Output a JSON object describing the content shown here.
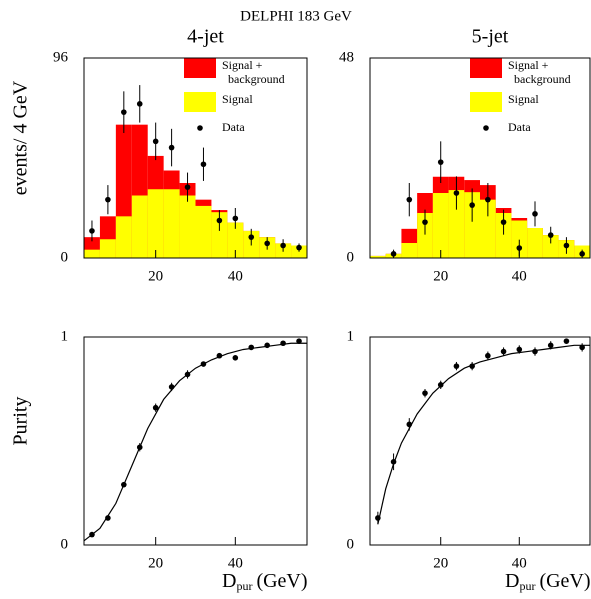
{
  "title": "DELPHI 183 GeV",
  "chart_data": [
    {
      "type": "histogram",
      "title": "4-jet",
      "ylabel": "events/ 4 GeV",
      "bins": [
        2,
        6,
        10,
        14,
        18,
        22,
        26,
        30,
        34,
        38,
        42,
        46,
        50,
        54,
        58
      ],
      "series": [
        {
          "name": "Signal + background",
          "color": "#ff0000",
          "values": [
            10,
            20,
            64,
            64,
            49,
            42,
            36,
            28,
            23,
            17,
            13,
            10,
            7,
            6
          ]
        },
        {
          "name": "Signal",
          "color": "#ffff00",
          "values": [
            4,
            9,
            20,
            30,
            33,
            33,
            30,
            25,
            22,
            17,
            13,
            10,
            7,
            6
          ]
        }
      ],
      "points": {
        "name": "Data",
        "color": "#000000",
        "x": [
          4,
          8,
          12,
          16,
          20,
          24,
          28,
          32,
          36,
          40,
          44,
          48,
          52,
          56
        ],
        "values": [
          13,
          28,
          70,
          74,
          56,
          53,
          34,
          45,
          18,
          19,
          10,
          7,
          6,
          5
        ],
        "errors": [
          5,
          7,
          10,
          9,
          9,
          9,
          7,
          8,
          5,
          5,
          4,
          3,
          3,
          2
        ]
      },
      "xlim": [
        2,
        58
      ],
      "ylim": [
        0,
        96
      ],
      "xticks": [
        20,
        40
      ],
      "yticks": [
        0,
        96
      ]
    },
    {
      "type": "histogram",
      "title": "5-jet",
      "bins": [
        2,
        6,
        10,
        14,
        18,
        22,
        26,
        30,
        34,
        38,
        42,
        46,
        50,
        54,
        58
      ],
      "series": [
        {
          "name": "Signal + background",
          "color": "#ff0000",
          "values": [
            0.5,
            1,
            7,
            15.6,
            19.5,
            19.5,
            18.7,
            17.5,
            12,
            9.6,
            7.2,
            5.5,
            4.3,
            3
          ]
        },
        {
          "name": "Signal",
          "color": "#ffff00",
          "values": [
            0.5,
            1,
            3.6,
            10.8,
            15.6,
            16.3,
            15.8,
            14,
            10.8,
            9,
            7.2,
            5.5,
            4.3,
            3
          ]
        }
      ],
      "points": {
        "name": "Data",
        "color": "#000000",
        "x": [
          8,
          12,
          16,
          20,
          24,
          28,
          32,
          36,
          40,
          44,
          48,
          52,
          56
        ],
        "values": [
          1,
          14,
          8.6,
          23,
          15.6,
          12.7,
          14,
          8.6,
          2.4,
          10.6,
          5.5,
          3,
          1
        ],
        "errors": [
          1,
          4,
          3,
          5,
          4,
          4,
          4,
          3,
          2,
          3,
          2,
          2,
          1
        ]
      },
      "xlim": [
        2,
        58
      ],
      "ylim": [
        0,
        48
      ],
      "xticks": [
        20,
        40
      ],
      "yticks": [
        0,
        48
      ]
    },
    {
      "type": "scatter",
      "ylabel": "Purity",
      "xlabel": "D",
      "xlabel_sub": "pur",
      "xlabel_unit": "(GeV)",
      "points": {
        "color": "#000000",
        "x": [
          4,
          8,
          12,
          16,
          20,
          24,
          28,
          32,
          36,
          40,
          44,
          48,
          52,
          56
        ],
        "values": [
          0.05,
          0.13,
          0.29,
          0.47,
          0.66,
          0.76,
          0.82,
          0.87,
          0.91,
          0.9,
          0.95,
          0.96,
          0.97,
          0.98
        ],
        "errors": [
          0.01,
          0.01,
          0.01,
          0.02,
          0.02,
          0.02,
          0.02,
          0.01,
          0.01,
          0.01,
          0.01,
          0.01,
          0.01,
          0.01
        ]
      },
      "fit": {
        "color": "#000000",
        "x": [
          2,
          6,
          10,
          14,
          18,
          22,
          26,
          30,
          34,
          38,
          42,
          46,
          50,
          54,
          58
        ],
        "values": [
          0.02,
          0.08,
          0.2,
          0.38,
          0.56,
          0.7,
          0.79,
          0.85,
          0.89,
          0.92,
          0.94,
          0.95,
          0.96,
          0.97,
          0.97
        ]
      },
      "xlim": [
        2,
        58
      ],
      "ylim": [
        0,
        1
      ],
      "xticks": [
        20,
        40
      ],
      "yticks": [
        0,
        1
      ]
    },
    {
      "type": "scatter",
      "xlabel": "D",
      "xlabel_sub": "pur",
      "xlabel_unit": "(GeV)",
      "points": {
        "color": "#000000",
        "x": [
          4,
          8,
          12,
          16,
          20,
          24,
          28,
          32,
          36,
          40,
          44,
          48,
          52,
          56
        ],
        "values": [
          0.13,
          0.4,
          0.58,
          0.73,
          0.77,
          0.86,
          0.86,
          0.91,
          0.93,
          0.94,
          0.93,
          0.96,
          0.98,
          0.95
        ],
        "errors": [
          0.03,
          0.04,
          0.03,
          0.02,
          0.02,
          0.02,
          0.02,
          0.02,
          0.02,
          0.02,
          0.02,
          0.02,
          0.01,
          0.02
        ]
      },
      "fit": {
        "color": "#000000",
        "x": [
          4,
          6,
          8,
          10,
          14,
          18,
          22,
          26,
          30,
          34,
          38,
          42,
          46,
          50,
          54,
          58
        ],
        "values": [
          0.1,
          0.27,
          0.39,
          0.49,
          0.63,
          0.73,
          0.8,
          0.85,
          0.88,
          0.9,
          0.92,
          0.93,
          0.94,
          0.95,
          0.96,
          0.96
        ]
      },
      "xlim": [
        2,
        58
      ],
      "ylim": [
        0,
        1
      ],
      "xticks": [
        20,
        40
      ],
      "yticks": [
        0,
        1
      ]
    }
  ]
}
